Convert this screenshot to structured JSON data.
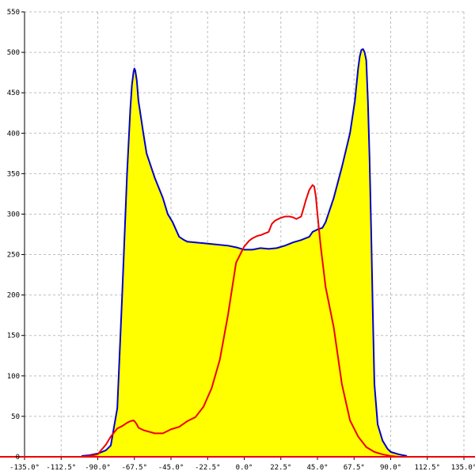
{
  "chart_data": {
    "type": "area",
    "title": "",
    "xlabel": "",
    "ylabel": "",
    "xlim": [
      -135,
      135
    ],
    "ylim": [
      0,
      550
    ],
    "grid": true,
    "x_ticks": [
      -135,
      -112.5,
      -90,
      -67.5,
      -45,
      -22.5,
      0,
      22.5,
      45,
      67.5,
      90,
      112.5,
      135
    ],
    "x_tick_labels": [
      "-135.0°",
      "-112.5°",
      "-90.0°",
      "-67.5°",
      "-45.0°",
      "-22.5°",
      "0.0°",
      "22.5°",
      "45.0°",
      "67.5°",
      "90.0°",
      "112.5°",
      "135.0°"
    ],
    "y_ticks": [
      0,
      50,
      100,
      150,
      200,
      250,
      300,
      350,
      400,
      450,
      500,
      550
    ],
    "y_tick_labels": [
      "0",
      "50",
      "100",
      "150",
      "200",
      "250",
      "300",
      "350",
      "400",
      "450",
      "500",
      "550"
    ],
    "colors": {
      "fill": "#ffff00",
      "series_1": "#0000cc",
      "series_2": "#ee0000",
      "grid": "#bdbdbd",
      "axis": "#000000",
      "baseline": "#ee0000"
    },
    "series": [
      {
        "x": [
          -100,
          -95,
          -90,
          -85,
          -82,
          -78,
          -75,
          -72,
          -70,
          -69,
          -68,
          -67.5,
          -67,
          -66,
          -65,
          -62,
          -60,
          -55,
          -50,
          -47,
          -44,
          -40,
          -37,
          -35,
          -30,
          -20,
          -10,
          -5,
          0,
          5,
          10,
          15,
          20,
          25,
          30,
          35,
          40,
          42,
          45,
          48,
          50,
          55,
          60,
          65,
          68,
          70,
          71,
          72,
          73,
          74,
          75,
          76,
          77,
          78,
          79,
          80,
          82,
          85,
          88,
          90,
          95,
          100
        ],
        "y": [
          1,
          2,
          4,
          8,
          14,
          60,
          200,
          350,
          430,
          460,
          476,
          480,
          478,
          465,
          440,
          400,
          375,
          345,
          320,
          300,
          290,
          272,
          268,
          266,
          265,
          263,
          261,
          259,
          256,
          256,
          258,
          257,
          258,
          261,
          265,
          268,
          272,
          278,
          281,
          283,
          290,
          320,
          358,
          400,
          440,
          480,
          495,
          503,
          504,
          500,
          490,
          440,
          370,
          280,
          180,
          90,
          40,
          20,
          10,
          6,
          3,
          1
        ]
      },
      {
        "x": [
          -100,
          -95,
          -90,
          -88,
          -85,
          -82,
          -78,
          -75,
          -72,
          -70,
          -68,
          -67,
          -66,
          -65,
          -62,
          -55,
          -50,
          -45,
          -40,
          -35,
          -30,
          -25,
          -20,
          -15,
          -10,
          -5,
          0,
          3,
          5,
          8,
          10,
          15,
          17,
          19,
          22,
          25,
          28,
          30,
          32,
          35,
          38,
          40,
          42,
          43,
          44,
          45,
          47,
          50,
          52,
          55,
          60,
          65,
          70,
          75,
          80,
          85,
          90,
          95,
          100
        ],
        "y": [
          0,
          1,
          3,
          8,
          15,
          25,
          35,
          38,
          42,
          44,
          45,
          43,
          40,
          36,
          33,
          29,
          29,
          34,
          37,
          44,
          49,
          62,
          85,
          120,
          175,
          240,
          260,
          267,
          270,
          273,
          274,
          278,
          288,
          292,
          295,
          297,
          297,
          296,
          294,
          297,
          318,
          330,
          336,
          334,
          322,
          300,
          260,
          210,
          190,
          160,
          90,
          45,
          25,
          12,
          6,
          3,
          1,
          0,
          0
        ]
      }
    ]
  }
}
